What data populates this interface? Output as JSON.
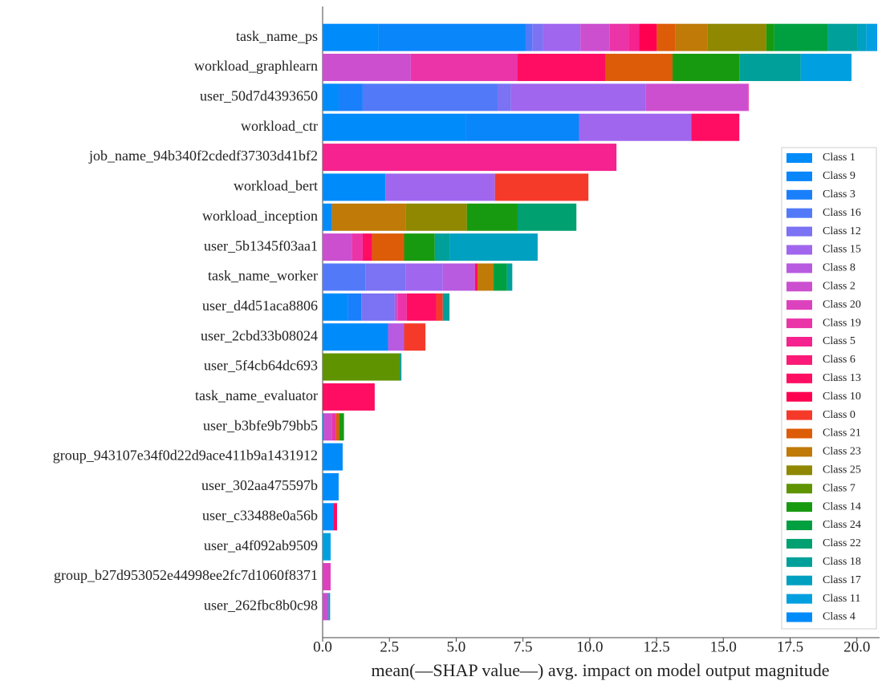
{
  "chart_data": {
    "type": "stacked-barh",
    "xlabel": "mean(—SHAP value—) avg. impact on model output magnitude",
    "categories": [
      "task_name_ps",
      "workload_graphlearn",
      "user_50d7d4393650",
      "workload_ctr",
      "job_name_94b340f2cdedf37303d41bf2",
      "workload_bert",
      "workload_inception",
      "user_5b1345f03aa1",
      "task_name_worker",
      "user_d4d51aca8806",
      "user_2cbd33b08024",
      "user_5f4cb64dc693",
      "task_name_evaluator",
      "user_b3bfe9b79bb5",
      "group_943107e34f0d22d9ace411b9a1431912",
      "user_302aa475597b",
      "user_c33488e0a56b",
      "user_a4f092ab9509",
      "group_b27d953052e44998ee2fc7d1060f8371",
      "user_262fbc8b0c98"
    ],
    "xlim": [
      0,
      20.85
    ],
    "xticks": [
      {
        "value": 0,
        "label": "0.0"
      },
      2.5,
      {
        "value": 5,
        "label": "5.0"
      },
      7.5,
      {
        "value": 10,
        "label": "10.0"
      },
      12.5,
      {
        "value": 15,
        "label": "15.0"
      },
      17.5,
      {
        "value": 20,
        "label": "20.0"
      }
    ],
    "series": [
      {
        "name": "Class 1",
        "color": "#008bfb",
        "values": [
          2.1,
          0,
          0.6,
          5.35,
          0,
          2.35,
          0.35,
          0,
          0,
          0.95,
          2.45,
          0,
          0,
          0.05,
          0.75,
          0.6,
          0.42,
          0,
          0,
          0
        ]
      },
      {
        "name": "Class 9",
        "color": "#0a86fb",
        "values": [
          5.5,
          0,
          0,
          4.25,
          0,
          0,
          0,
          0,
          0,
          0,
          0,
          0,
          0,
          0,
          0,
          0,
          0,
          0,
          0,
          0
        ]
      },
      {
        "name": "Class 3",
        "color": "#1a7ffb",
        "values": [
          0,
          0,
          0.9,
          0,
          0,
          0,
          0,
          0,
          0,
          0.5,
          0,
          0,
          0,
          0,
          0,
          0,
          0,
          0,
          0,
          0
        ]
      },
      {
        "name": "Class 16",
        "color": "#527af8",
        "values": [
          0.25,
          0,
          5.05,
          0,
          0,
          0,
          0,
          0,
          1.6,
          0,
          0,
          0,
          0,
          0,
          0,
          0,
          0,
          0,
          0,
          0
        ]
      },
      {
        "name": "Class 12",
        "color": "#7b72f4",
        "values": [
          0.4,
          0,
          0.5,
          0,
          0,
          0,
          0,
          0,
          1.5,
          1.25,
          0,
          0,
          0,
          0,
          0,
          0,
          0,
          0,
          0,
          0
        ]
      },
      {
        "name": "Class 15",
        "color": "#a066ee",
        "values": [
          1.4,
          0,
          5.05,
          4.2,
          0,
          4.1,
          0,
          0,
          1.4,
          0,
          0,
          0,
          0,
          0,
          0,
          0,
          0,
          0,
          0,
          0
        ]
      },
      {
        "name": "Class 8",
        "color": "#b85be0",
        "values": [
          0,
          0,
          0,
          0,
          0,
          0,
          0,
          0,
          1.2,
          0,
          0.6,
          0,
          0,
          0,
          0,
          0,
          0,
          0,
          0,
          0
        ]
      },
      {
        "name": "Class 2",
        "color": "#cc4fd0",
        "values": [
          1.1,
          3.3,
          3.8,
          0,
          0,
          0,
          0,
          1.1,
          0,
          0.1,
          0,
          0,
          0,
          0.3,
          0,
          0,
          0,
          0,
          0,
          0.22
        ]
      },
      {
        "name": "Class 20",
        "color": "#dd42be",
        "values": [
          0,
          0,
          0,
          0,
          0,
          0,
          0,
          0,
          0,
          0,
          0,
          0,
          0,
          0,
          0,
          0,
          0,
          0,
          0.3,
          0
        ]
      },
      {
        "name": "Class 19",
        "color": "#ea34a8",
        "values": [
          0.7,
          4.0,
          0.05,
          0,
          0,
          0,
          0,
          0.4,
          0,
          0.35,
          0,
          0,
          0,
          0.15,
          0,
          0,
          0,
          0,
          0,
          0
        ]
      },
      {
        "name": "Class 5",
        "color": "#f5228f",
        "values": [
          0.4,
          0,
          0,
          0,
          11.0,
          0,
          0,
          0,
          0,
          0,
          0,
          0,
          0,
          0,
          0,
          0,
          0,
          0,
          0,
          0
        ]
      },
      {
        "name": "Class 6",
        "color": "#fc1a78",
        "values": [
          0,
          0,
          0,
          0,
          0,
          0,
          0,
          0,
          0,
          0,
          0,
          0,
          0,
          0,
          0,
          0,
          0,
          0,
          0,
          0
        ]
      },
      {
        "name": "Class 13",
        "color": "#ff0d62",
        "values": [
          0,
          3.3,
          0,
          1.8,
          0,
          0,
          0,
          0.35,
          0.1,
          1.1,
          0,
          0,
          1.95,
          0,
          0,
          0,
          0.12,
          0,
          0,
          0
        ]
      },
      {
        "name": "Class 10",
        "color": "#ff0051",
        "values": [
          0.66,
          0,
          0,
          0,
          0,
          0,
          0,
          0,
          0,
          0,
          0,
          0,
          0,
          0,
          0,
          0,
          0,
          0,
          0,
          0
        ]
      },
      {
        "name": "Class 0",
        "color": "#f53a2a",
        "values": [
          0,
          0,
          0,
          0,
          0,
          3.5,
          0,
          0,
          0,
          0.25,
          0.8,
          0,
          0,
          0,
          0,
          0,
          0,
          0,
          0,
          0
        ]
      },
      {
        "name": "Class 21",
        "color": "#dd5c08",
        "values": [
          0.7,
          2.5,
          0,
          0,
          0,
          0,
          0,
          1.2,
          0,
          0,
          0,
          0,
          0,
          0.12,
          0,
          0,
          0,
          0,
          0,
          0
        ]
      },
      {
        "name": "Class 23",
        "color": "#bf7a08",
        "values": [
          1.2,
          0,
          0,
          0,
          0,
          0,
          2.75,
          0,
          0.6,
          0,
          0,
          0,
          0,
          0,
          0,
          0,
          0,
          0,
          0,
          0
        ]
      },
      {
        "name": "Class 25",
        "color": "#8f8800",
        "values": [
          2.2,
          0,
          0,
          0,
          0,
          0,
          2.3,
          0,
          0,
          0,
          0,
          0,
          0,
          0,
          0,
          0,
          0,
          0,
          0,
          0
        ]
      },
      {
        "name": "Class 7",
        "color": "#5f9300",
        "values": [
          0,
          0,
          0,
          0,
          0,
          0,
          0,
          0,
          0,
          0,
          0,
          2.9,
          0,
          0,
          0,
          0,
          0,
          0,
          0,
          0
        ]
      },
      {
        "name": "Class 14",
        "color": "#189a10",
        "values": [
          0.3,
          2.5,
          0,
          0,
          0,
          0,
          1.9,
          1.15,
          0,
          0,
          0,
          0,
          0,
          0.18,
          0,
          0,
          0,
          0,
          0,
          0
        ]
      },
      {
        "name": "Class 24",
        "color": "#00a040",
        "values": [
          2.0,
          0,
          0,
          0,
          0,
          0,
          0,
          0,
          0.5,
          0,
          0,
          0,
          0,
          0,
          0,
          0,
          0,
          0,
          0,
          0
        ]
      },
      {
        "name": "Class 22",
        "color": "#00a070",
        "values": [
          0,
          0,
          0,
          0,
          0,
          0,
          2.2,
          0,
          0,
          0,
          0,
          0,
          0,
          0,
          0,
          0,
          0,
          0,
          0,
          0
        ]
      },
      {
        "name": "Class 18",
        "color": "#00a09a",
        "values": [
          1.1,
          2.3,
          0,
          0,
          0,
          0,
          0,
          0.55,
          0.2,
          0.25,
          0,
          0,
          0,
          0,
          0,
          0,
          0,
          0,
          0,
          0
        ]
      },
      {
        "name": "Class 17",
        "color": "#00a0c0",
        "values": [
          0.35,
          0,
          0,
          0,
          0,
          0,
          0,
          3.3,
          0,
          0,
          0,
          0.05,
          0,
          0,
          0,
          0,
          0,
          0,
          0,
          0.06
        ]
      },
      {
        "name": "Class 11",
        "color": "#00a0e0",
        "values": [
          0.35,
          1.9,
          0,
          0,
          0,
          0,
          0,
          0,
          0,
          0,
          0,
          0,
          0,
          0,
          0,
          0,
          0,
          0.3,
          0,
          0
        ]
      },
      {
        "name": "Class 4",
        "color": "#008bfb",
        "values": [
          0.05,
          0,
          0,
          0,
          0,
          0,
          0,
          0,
          0,
          0,
          0,
          0,
          0,
          0,
          0,
          0,
          0,
          0,
          0,
          0
        ]
      }
    ]
  }
}
